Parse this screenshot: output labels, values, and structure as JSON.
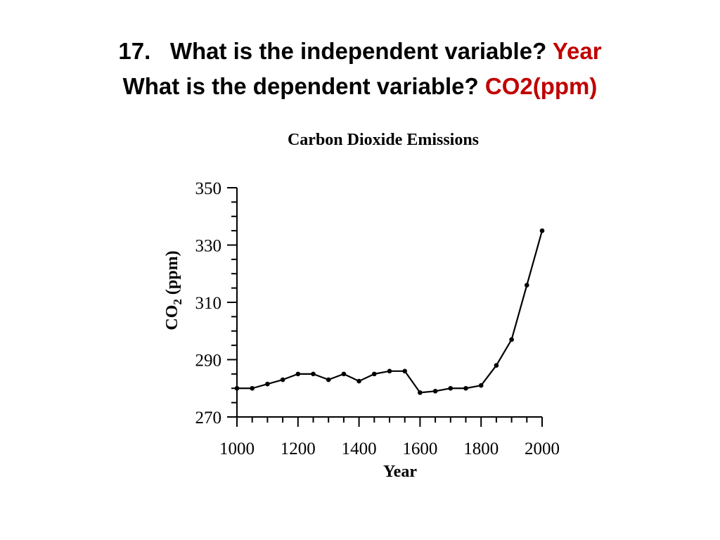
{
  "slide": {
    "question_1": {
      "number": "17.",
      "prompt": "What is the independent variable?",
      "answer": "Year"
    },
    "question_2": {
      "prompt": "What is the dependent variable?",
      "answer": "CO2(ppm)"
    },
    "answer_color": "#c00000"
  },
  "chart_data": {
    "type": "line",
    "title": "Carbon Dioxide Emissions",
    "xlabel": "Year",
    "ylabel_main": "CO",
    "ylabel_sub": "2",
    "ylabel_unit": " (ppm)",
    "xlim": [
      1000,
      2000
    ],
    "ylim": [
      270,
      350
    ],
    "xticks": [
      1000,
      1200,
      1400,
      1600,
      1800,
      2000
    ],
    "yticks": [
      270,
      290,
      310,
      330,
      350
    ],
    "x_minor_step": 50,
    "y_minor_step": 5,
    "grid": false,
    "line_color": "#000000",
    "series": [
      {
        "x": [
          1000,
          1050,
          1100,
          1150,
          1200,
          1250,
          1300,
          1350,
          1400,
          1450,
          1500,
          1550,
          1600,
          1650,
          1700,
          1750,
          1800,
          1850,
          1900,
          1950,
          2000
        ],
        "values": [
          280,
          280,
          281.5,
          283,
          285,
          285,
          283,
          285,
          282.5,
          285,
          286,
          286,
          278.5,
          279,
          280,
          280,
          281,
          288,
          297,
          316,
          335
        ]
      }
    ]
  }
}
